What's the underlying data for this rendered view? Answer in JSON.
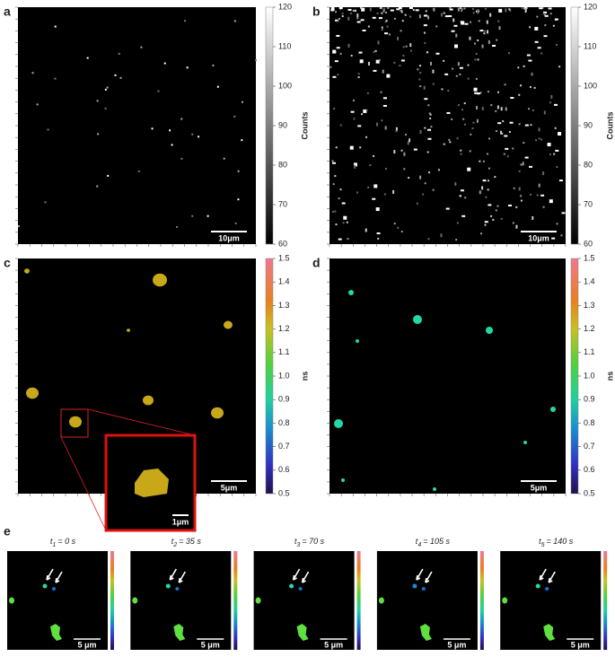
{
  "panels": [
    {
      "letter": "a",
      "colorbar": {
        "ticks": [
          60,
          70,
          80,
          90,
          100,
          110,
          120
        ],
        "label": "Counts"
      },
      "scale_bar": "10μm"
    },
    {
      "letter": "b",
      "colorbar": {
        "ticks": [
          60,
          70,
          80,
          90,
          100,
          110,
          120
        ],
        "label": "Counts"
      },
      "scale_bar": "10μm"
    },
    {
      "letter": "c",
      "colorbar": {
        "ticks": [
          0.5,
          0.6,
          0.7,
          0.8,
          0.9,
          {
            "value": 1,
            "label": "1.0"
          },
          1.1,
          1.2,
          1.3,
          1.4,
          1.5
        ],
        "label": "ns"
      },
      "scale_bar": "5μm",
      "inset_scale_bar": "1μm"
    },
    {
      "letter": "d",
      "colorbar": {
        "ticks": [
          0.5,
          0.6,
          0.7,
          0.8,
          0.9,
          {
            "value": 1,
            "label": "1.0"
          },
          1.1,
          1.2,
          1.3,
          1.4,
          1.5
        ],
        "label": "ns"
      },
      "scale_bar": "5μm"
    }
  ],
  "panel_e": {
    "letter": "e",
    "frames": [
      {
        "symbol": "t",
        "index": "1",
        "text": "= 0 s",
        "scale_bar": "5 μm"
      },
      {
        "symbol": "t",
        "index": "2",
        "text": "= 35 s",
        "scale_bar": "5 μm"
      },
      {
        "symbol": "t",
        "index": "3",
        "text": "= 70 s",
        "scale_bar": "5 μm"
      },
      {
        "symbol": "t",
        "index": "4",
        "text": "= 105 s",
        "scale_bar": "5 μm"
      },
      {
        "symbol": "t",
        "index": "5",
        "text": "= 140 s",
        "scale_bar": "5 μm"
      }
    ]
  }
}
